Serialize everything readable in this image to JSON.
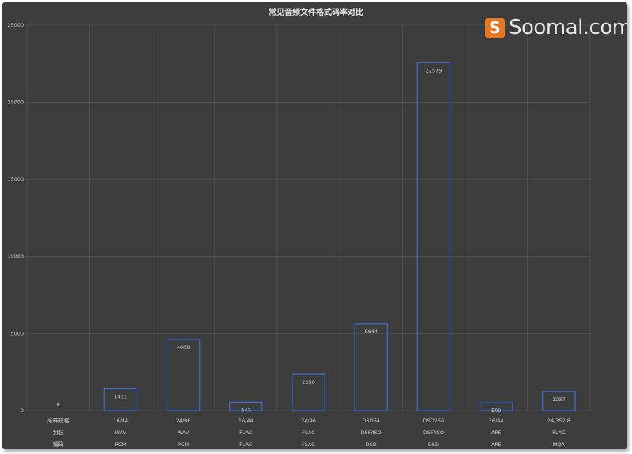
{
  "chart_data": {
    "type": "bar",
    "title": "常见音频文件格式码率对比",
    "xlabel": "",
    "ylabel": "",
    "ylim": [
      0,
      25000
    ],
    "y_ticks": [
      0,
      5000,
      10000,
      15000,
      20000,
      25000
    ],
    "grid": true,
    "legend": "none",
    "categories": [
      "",
      "16/44",
      "24/96",
      "16/44",
      "24/96",
      "DSD64",
      "DSD256",
      "16/44",
      "24/352.8"
    ],
    "values": [
      0,
      1411,
      4608,
      547,
      2350,
      5644,
      22579,
      500,
      1237
    ],
    "table_rows": [
      {
        "label": "采样规格",
        "cells": [
          "",
          "16/44",
          "24/96",
          "16/44",
          "24/96",
          "DSD64",
          "DSD256",
          "16/44",
          "24/352.8"
        ]
      },
      {
        "label": "封装",
        "cells": [
          "",
          "WAV",
          "WAV",
          "FLAC",
          "FLAC",
          "DSF/ISO",
          "DSF/ISO",
          "APE",
          "FLAC"
        ]
      },
      {
        "label": "编码",
        "cells": [
          "",
          "PCM",
          "PCM",
          "FLAC",
          "FLAC",
          "DSD",
          "DSD",
          "APE",
          "MQA"
        ]
      }
    ]
  },
  "colors": {
    "background": "#3d3d3d",
    "bar_outline": "#3a6fd8",
    "grid": "#5a5a5a",
    "text": "#d2d2d2",
    "brand": "#e8771f"
  },
  "watermark": {
    "icon_glyph": "S",
    "text": "Soomal.com",
    "icon": "soomal-logo-icon"
  }
}
